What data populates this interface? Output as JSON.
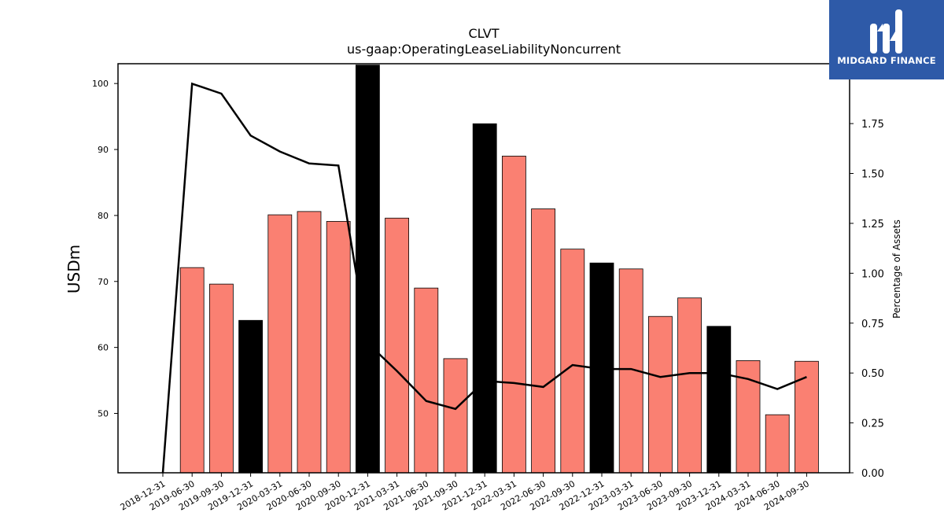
{
  "brand": {
    "name": "MIDGARD FINANCE",
    "color": "#2e5aa8"
  },
  "chart_data": {
    "type": "bar",
    "title": "CLVT",
    "subtitle": "us-gaap:OperatingLeaseLiabilityNoncurrent",
    "ylabel": "USDm",
    "y2label": "Percentage of Assets",
    "ylim": [
      41,
      103
    ],
    "y2lim": [
      0,
      2.05
    ],
    "yticks": [
      50,
      60,
      70,
      80,
      90,
      100
    ],
    "y2ticks": [
      "0.00",
      "0.25",
      "0.50",
      "0.75",
      "1.00",
      "1.25",
      "1.50",
      "1.75"
    ],
    "categories": [
      "2018-12-31",
      "2019-06-30",
      "2019-09-30",
      "2019-12-31",
      "2020-03-31",
      "2020-06-30",
      "2020-09-30",
      "2020-12-31",
      "2021-03-31",
      "2021-06-30",
      "2021-09-30",
      "2021-12-31",
      "2022-03-31",
      "2022-06-30",
      "2022-09-30",
      "2022-12-31",
      "2023-03-31",
      "2023-06-30",
      "2023-09-30",
      "2023-12-31",
      "2024-03-31",
      "2024-06-30",
      "2024-09-30"
    ],
    "series": [
      {
        "type": "bar",
        "values": [
          null,
          72.1,
          69.6,
          64.1,
          80.1,
          80.6,
          79.1,
          102.8,
          79.6,
          69.0,
          58.3,
          93.9,
          89.0,
          81.0,
          74.9,
          72.8,
          71.9,
          64.7,
          67.5,
          63.2,
          58.0,
          49.8,
          57.9
        ],
        "colors": [
          "#fa8072",
          "#fa8072",
          "#fa8072",
          "#000000",
          "#fa8072",
          "#fa8072",
          "#fa8072",
          "#000000",
          "#fa8072",
          "#fa8072",
          "#fa8072",
          "#000000",
          "#fa8072",
          "#fa8072",
          "#fa8072",
          "#000000",
          "#fa8072",
          "#fa8072",
          "#fa8072",
          "#000000",
          "#fa8072",
          "#fa8072",
          "#fa8072"
        ]
      },
      {
        "type": "line",
        "axis": "right",
        "values": [
          0.0,
          1.95,
          1.9,
          1.69,
          1.61,
          1.55,
          1.54,
          0.65,
          0.51,
          0.36,
          0.32,
          0.46,
          0.45,
          0.43,
          0.54,
          0.52,
          0.52,
          0.48,
          0.5,
          0.5,
          0.47,
          0.42,
          0.48
        ],
        "color": "#000000"
      }
    ]
  }
}
